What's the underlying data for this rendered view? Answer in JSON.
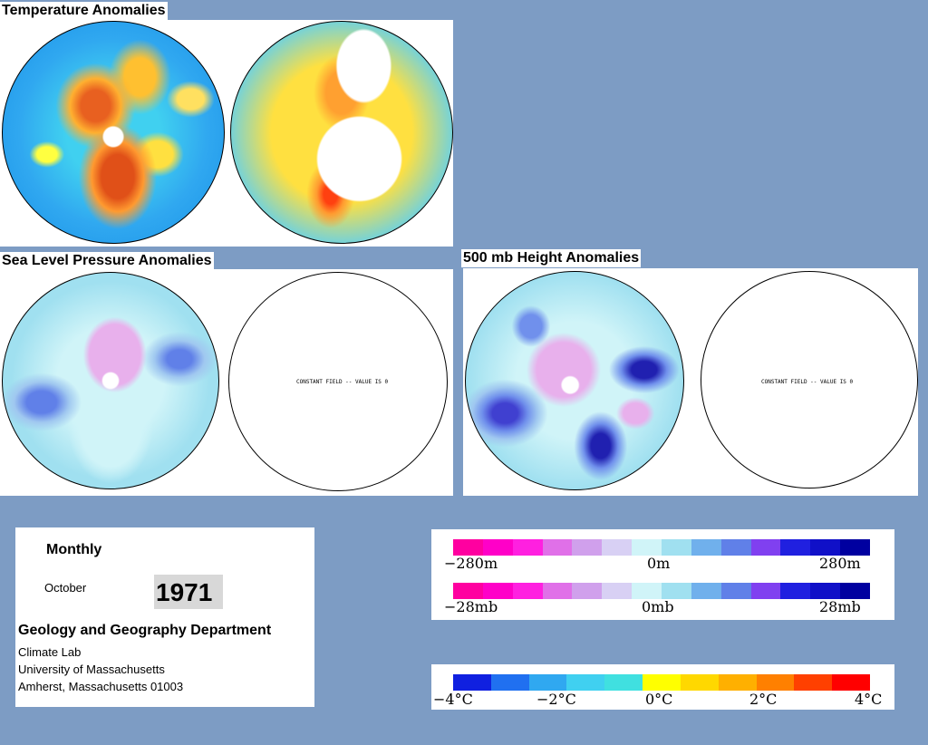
{
  "titles": {
    "temperature": "Temperature Anomalies",
    "slp": "Sea Level Pressure Anomalies",
    "height500": "500 mb Height Anomalies"
  },
  "constant_field_note": "CONSTANT FIELD -- VALUE IS 0",
  "info": {
    "period": "Monthly",
    "month": "October",
    "year": "1971",
    "department": "Geology and Geography Department",
    "lab": "Climate Lab",
    "university": "University of Massachusetts",
    "address": "Amherst, Massachusetts 01003"
  },
  "legends": {
    "height": {
      "left": "−280m",
      "center": "0m",
      "right": "280m"
    },
    "pressure": {
      "left": "−28mb",
      "center": "0mb",
      "right": "28mb"
    },
    "temperature": {
      "t1": "−4°C",
      "t2": "−2°C",
      "t3": "0°C",
      "t4": "2°C",
      "t5": "4°C"
    }
  },
  "colors": {
    "background": "#7d9cc4",
    "anomaly_scale": [
      "#ff00a0",
      "#ff00c8",
      "#ff20e0",
      "#e070e8",
      "#d0a0ec",
      "#d8d0f4",
      "#d0f4f8",
      "#a0e0f0",
      "#70b0ec",
      "#6080e8",
      "#8040f0",
      "#2020e0",
      "#1010c8",
      "#0000a0"
    ],
    "temperature_scale": [
      "#1020e0",
      "#2070f0",
      "#30a8f0",
      "#40d0f0",
      "#40e0e0",
      "#ffff00",
      "#ffd800",
      "#ffb000",
      "#ff8000",
      "#ff4000",
      "#ff0000"
    ]
  }
}
